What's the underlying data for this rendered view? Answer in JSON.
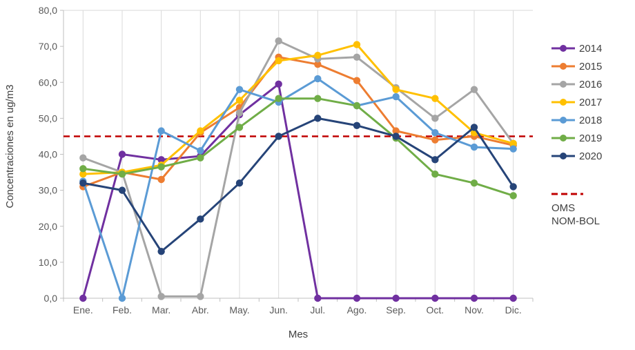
{
  "chart_data": {
    "type": "line",
    "title": "",
    "xlabel": "Mes",
    "ylabel": "Concentraciones en ug/m3",
    "ylim": [
      0,
      80
    ],
    "ytick_step": 10,
    "ytick_labels": [
      "0,0",
      "10,0",
      "20,0",
      "30,0",
      "40,0",
      "50,0",
      "60,0",
      "70,0",
      "80,0"
    ],
    "categories": [
      "Ene.",
      "Feb.",
      "Mar.",
      "Abr.",
      "May.",
      "Jun.",
      "Jul.",
      "Ago.",
      "Sep.",
      "Oct.",
      "Nov.",
      "Dic."
    ],
    "series": [
      {
        "name": "2014",
        "color": "#7030A0",
        "values": [
          0,
          40,
          38.5,
          39.5,
          51,
          59.5,
          0,
          0,
          0,
          0,
          0,
          0
        ]
      },
      {
        "name": "2015",
        "color": "#ED7D31",
        "values": [
          31,
          35,
          33,
          46,
          53,
          67,
          65,
          60.5,
          46.5,
          44,
          45,
          42.5
        ]
      },
      {
        "name": "2016",
        "color": "#A5A5A5",
        "values": [
          39,
          35,
          0.5,
          0.5,
          51.5,
          71.5,
          66.5,
          67,
          58.5,
          50,
          58,
          43
        ]
      },
      {
        "name": "2017",
        "color": "#FFC000",
        "values": [
          34.5,
          35,
          37,
          46.5,
          55,
          66,
          67.5,
          70.5,
          58,
          55.5,
          46,
          43
        ]
      },
      {
        "name": "2018",
        "color": "#5B9BD5",
        "values": [
          32.5,
          0,
          46.5,
          41,
          58,
          54.5,
          61,
          53.5,
          56,
          46,
          42,
          41.5
        ]
      },
      {
        "name": "2019",
        "color": "#70AD47",
        "values": [
          36,
          34.5,
          36.5,
          39,
          47.5,
          55.5,
          55.5,
          53.5,
          44.5,
          34.5,
          32,
          28.5
        ]
      },
      {
        "name": "2020",
        "color": "#264478",
        "values": [
          32,
          30,
          13,
          22,
          32,
          45,
          50,
          48,
          45,
          38.5,
          47.5,
          31
        ]
      }
    ],
    "reference_line": {
      "value": 45,
      "color": "#C00000",
      "style": "dashed",
      "label_lines": [
        "OMS",
        "NOM-BOL"
      ]
    },
    "legend_position": "right",
    "grid": "vertical",
    "axis_text_color": "#595959",
    "axis_line_color": "#BFBFBF",
    "gridline_color": "#D9D9D9"
  }
}
